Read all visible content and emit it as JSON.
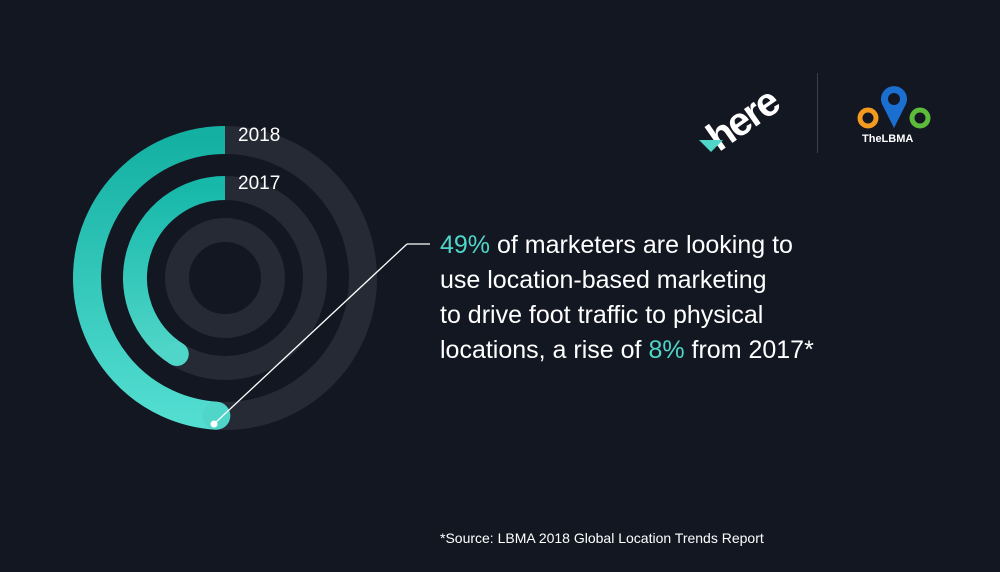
{
  "chart_data": {
    "type": "radial-bar",
    "categories": [
      "2018",
      "2017"
    ],
    "values": [
      49,
      41
    ],
    "unit": "%",
    "max": 100,
    "colors": {
      "2018": "#1fbfb0",
      "2017": "#25c2b5",
      "track": "#252a35"
    }
  },
  "headline": {
    "value": "49%",
    "text1": " of marketers are looking to",
    "line2": "use location-based marketing",
    "line3": "to drive foot traffic to physical",
    "line4_pre": "locations, a rise of ",
    "increase": "8%",
    "line4_post": " from 2017*"
  },
  "source": "*Source: LBMA 2018 Global Location Trends Report",
  "logos": {
    "here": "here",
    "lbma": "TheLBMA"
  },
  "colors": {
    "background": "#131722",
    "accent": "#4fd6c8",
    "text": "#ffffff"
  }
}
